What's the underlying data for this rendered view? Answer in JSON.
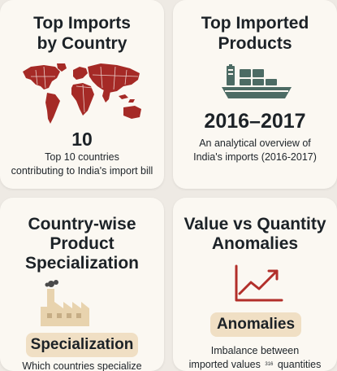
{
  "cards": [
    {
      "title_line1": "Top Imports",
      "title_line2": "by Country",
      "icon": "world-map-icon",
      "big_value": "10",
      "desc_line1": "Top 10 countries",
      "desc_line2": "contributing to India's import bill"
    },
    {
      "title_line1": "Top Imported",
      "title_line2": "Products",
      "icon": "cargo-ship-icon",
      "big_value": "2016–2017",
      "desc_line1": "An analytical overview of",
      "desc_line2": "India's imports (2016-2017)"
    },
    {
      "title_line1": "Country-wise",
      "title_line2": "Product",
      "title_line3": "Specialization",
      "icon": "factory-icon",
      "pill_label": "Specialization",
      "desc_line1": "Which countries specialize"
    },
    {
      "title_line1": "Value vs Quantity",
      "title_line2": "Anomalies",
      "icon": "trend-chart-icon",
      "pill_label": "Anomalies",
      "desc_line1": "Imbalance between",
      "desc_line2": "imported values",
      "desc_inline_tag": "316",
      "desc_line2_end": "quantities"
    }
  ],
  "colors": {
    "map_red": "#a52a26",
    "ship_teal": "#4c6b64",
    "factory_beige": "#e8d3ae",
    "chart_red": "#b22f2a",
    "pill_bg": "#f0dfc4"
  }
}
